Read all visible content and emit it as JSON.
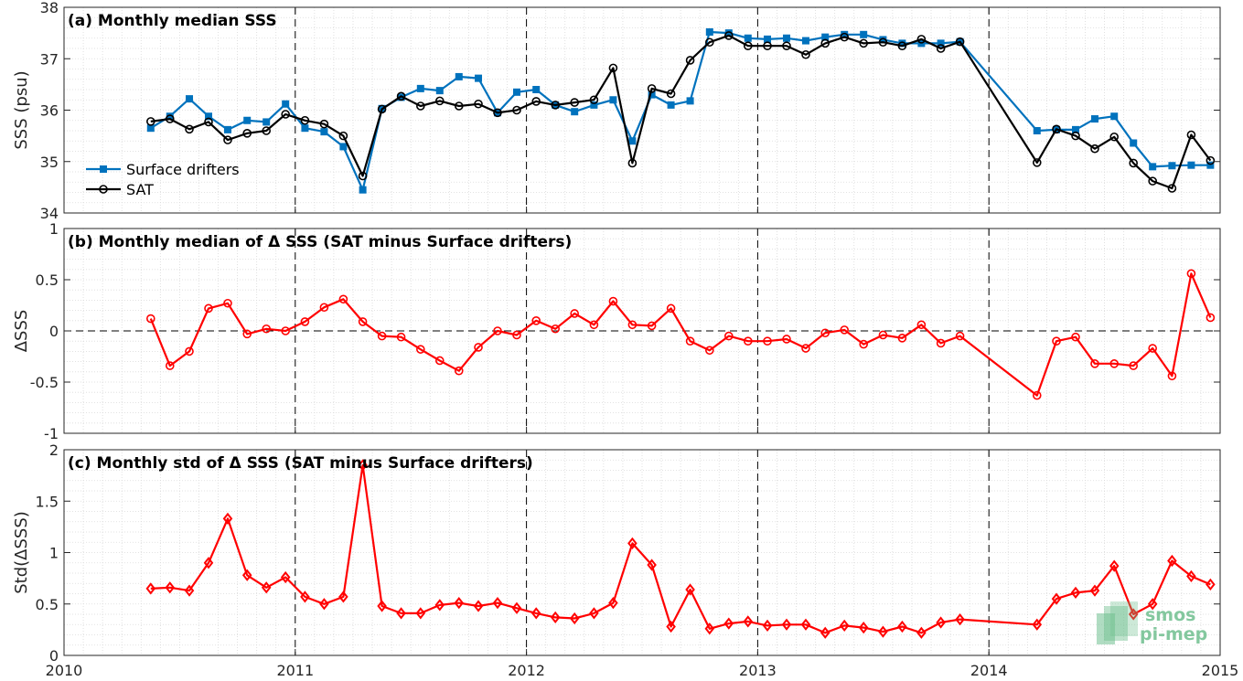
{
  "colors": {
    "drifters": "#0072BD",
    "sat": "#000000",
    "red": "#FF0000",
    "grid": "#d9d9d9",
    "logo_green": "#6fbf8f"
  },
  "logo": {
    "line1": "smos",
    "line2": "pi-mep"
  },
  "chart_data": [
    {
      "type": "line",
      "panel": "a",
      "title": "(a) Monthly median SSS",
      "ylabel": "SSS (psu)",
      "xlabel": "",
      "xlim": [
        2010,
        2015
      ],
      "ylim": [
        34,
        38
      ],
      "xticks": [
        "2010",
        "2011",
        "2012",
        "2013",
        "2014",
        "2015"
      ],
      "yticks": [
        "34",
        "35",
        "36",
        "37",
        "38"
      ],
      "legend": "bottom-left",
      "grid": true,
      "series": [
        {
          "name": "Surface drifters",
          "color": "#0072BD",
          "marker": "square",
          "x": [
            2010.375,
            2010.458,
            2010.542,
            2010.625,
            2010.708,
            2010.792,
            2010.875,
            2010.958,
            2011.042,
            2011.125,
            2011.208,
            2011.292,
            2011.375,
            2011.458,
            2011.542,
            2011.625,
            2011.708,
            2011.792,
            2011.875,
            2011.958,
            2012.042,
            2012.125,
            2012.208,
            2012.292,
            2012.375,
            2012.458,
            2012.542,
            2012.625,
            2012.708,
            2012.792,
            2012.875,
            2012.958,
            2013.042,
            2013.125,
            2013.208,
            2013.292,
            2013.375,
            2013.458,
            2013.542,
            2013.625,
            2013.708,
            2013.792,
            2013.875,
            2014.208,
            2014.292,
            2014.375,
            2014.458,
            2014.542,
            2014.625,
            2014.708,
            2014.792,
            2014.875,
            2014.958
          ],
          "values": [
            35.65,
            35.88,
            36.22,
            35.88,
            35.62,
            35.8,
            35.77,
            36.12,
            35.65,
            35.58,
            35.29,
            34.45,
            36.03,
            36.25,
            36.42,
            36.38,
            36.65,
            36.62,
            35.95,
            36.35,
            36.4,
            36.1,
            35.97,
            36.1,
            36.2,
            35.4,
            36.3,
            36.1,
            36.18,
            37.52,
            37.5,
            37.4,
            37.38,
            37.4,
            37.35,
            37.42,
            37.47,
            37.47,
            37.37,
            37.3,
            37.3,
            37.3,
            37.33,
            35.6,
            35.62,
            35.62,
            35.83,
            35.88,
            35.36,
            34.9,
            34.92,
            34.93,
            34.93
          ]
        },
        {
          "name": "SAT",
          "color": "#000000",
          "marker": "circle",
          "x": [
            2010.375,
            2010.458,
            2010.542,
            2010.625,
            2010.708,
            2010.792,
            2010.875,
            2010.958,
            2011.042,
            2011.125,
            2011.208,
            2011.292,
            2011.375,
            2011.458,
            2011.542,
            2011.625,
            2011.708,
            2011.792,
            2011.875,
            2011.958,
            2012.042,
            2012.125,
            2012.208,
            2012.292,
            2012.375,
            2012.458,
            2012.542,
            2012.625,
            2012.708,
            2012.792,
            2012.875,
            2012.958,
            2013.042,
            2013.125,
            2013.208,
            2013.292,
            2013.375,
            2013.458,
            2013.542,
            2013.625,
            2013.708,
            2013.792,
            2013.875,
            2014.208,
            2014.292,
            2014.375,
            2014.458,
            2014.542,
            2014.625,
            2014.708,
            2014.792,
            2014.875,
            2014.958
          ],
          "values": [
            35.78,
            35.83,
            35.63,
            35.77,
            35.42,
            35.55,
            35.6,
            35.92,
            35.8,
            35.73,
            35.5,
            34.72,
            36.02,
            36.27,
            36.08,
            36.18,
            36.08,
            36.12,
            35.95,
            36.0,
            36.17,
            36.1,
            36.15,
            36.2,
            36.82,
            34.97,
            36.42,
            36.32,
            36.97,
            37.32,
            37.45,
            37.25,
            37.25,
            37.25,
            37.08,
            37.3,
            37.42,
            37.3,
            37.32,
            37.25,
            37.38,
            37.2,
            37.33,
            34.98,
            35.63,
            35.5,
            35.25,
            35.48,
            34.97,
            34.62,
            34.48,
            35.52,
            35.02
          ]
        }
      ]
    },
    {
      "type": "line",
      "panel": "b",
      "title": "(b) Monthly median of Δ SSS (SAT minus Surface drifters)",
      "ylabel": "ΔSSS",
      "xlabel": "",
      "xlim": [
        2010,
        2015
      ],
      "ylim": [
        -1,
        1
      ],
      "xticks": [
        "2010",
        "2011",
        "2012",
        "2013",
        "2014",
        "2015"
      ],
      "yticks": [
        "-1",
        "-0.5",
        "0",
        "0.5",
        "1"
      ],
      "zero_line": true,
      "grid": true,
      "series": [
        {
          "name": "",
          "color": "#FF0000",
          "marker": "circle",
          "x": [
            2010.375,
            2010.458,
            2010.542,
            2010.625,
            2010.708,
            2010.792,
            2010.875,
            2010.958,
            2011.042,
            2011.125,
            2011.208,
            2011.292,
            2011.375,
            2011.458,
            2011.542,
            2011.625,
            2011.708,
            2011.792,
            2011.875,
            2011.958,
            2012.042,
            2012.125,
            2012.208,
            2012.292,
            2012.375,
            2012.458,
            2012.542,
            2012.625,
            2012.708,
            2012.792,
            2012.875,
            2012.958,
            2013.042,
            2013.125,
            2013.208,
            2013.292,
            2013.375,
            2013.458,
            2013.542,
            2013.625,
            2013.708,
            2013.792,
            2013.875,
            2014.208,
            2014.292,
            2014.375,
            2014.458,
            2014.542,
            2014.625,
            2014.708,
            2014.792,
            2014.875,
            2014.958
          ],
          "values": [
            0.12,
            -0.34,
            -0.2,
            0.22,
            0.27,
            -0.03,
            0.02,
            0.0,
            0.09,
            0.23,
            0.31,
            0.09,
            -0.05,
            -0.06,
            -0.18,
            -0.29,
            -0.39,
            -0.16,
            0.0,
            -0.04,
            0.1,
            0.02,
            0.17,
            0.06,
            0.29,
            0.06,
            0.05,
            0.22,
            -0.1,
            -0.19,
            -0.05,
            -0.1,
            -0.1,
            -0.08,
            -0.17,
            -0.02,
            0.01,
            -0.13,
            -0.04,
            -0.07,
            0.06,
            -0.12,
            -0.05,
            -0.63,
            -0.1,
            -0.06,
            -0.32,
            -0.32,
            -0.34,
            -0.17,
            -0.44,
            0.56,
            0.13
          ]
        }
      ]
    },
    {
      "type": "line",
      "panel": "c",
      "title": "(c) Monthly std of Δ SSS (SAT minus Surface drifters)",
      "ylabel": "Std(ΔSSS)",
      "xlabel": "",
      "xlim": [
        2010,
        2015
      ],
      "ylim": [
        0,
        2
      ],
      "xticks": [
        "2010",
        "2011",
        "2012",
        "2013",
        "2014",
        "2015"
      ],
      "yticks": [
        "0",
        "0.5",
        "1",
        "1.5",
        "2"
      ],
      "grid": true,
      "series": [
        {
          "name": "",
          "color": "#FF0000",
          "marker": "diamond",
          "x": [
            2010.375,
            2010.458,
            2010.542,
            2010.625,
            2010.708,
            2010.792,
            2010.875,
            2010.958,
            2011.042,
            2011.125,
            2011.208,
            2011.292,
            2011.375,
            2011.458,
            2011.542,
            2011.625,
            2011.708,
            2011.792,
            2011.875,
            2011.958,
            2012.042,
            2012.125,
            2012.208,
            2012.292,
            2012.375,
            2012.458,
            2012.542,
            2012.625,
            2012.708,
            2012.792,
            2012.875,
            2012.958,
            2013.042,
            2013.125,
            2013.208,
            2013.292,
            2013.375,
            2013.458,
            2013.542,
            2013.625,
            2013.708,
            2013.792,
            2013.875,
            2014.208,
            2014.292,
            2014.375,
            2014.458,
            2014.542,
            2014.625,
            2014.708,
            2014.792,
            2014.875,
            2014.958
          ],
          "values": [
            0.65,
            0.66,
            0.63,
            0.9,
            1.33,
            0.78,
            0.66,
            0.76,
            0.57,
            0.5,
            0.57,
            1.85,
            0.48,
            0.41,
            0.41,
            0.49,
            0.51,
            0.48,
            0.51,
            0.46,
            0.41,
            0.37,
            0.36,
            0.41,
            0.51,
            1.09,
            0.88,
            0.28,
            0.64,
            0.26,
            0.31,
            0.33,
            0.29,
            0.3,
            0.3,
            0.22,
            0.29,
            0.27,
            0.23,
            0.28,
            0.22,
            0.32,
            0.35,
            0.3,
            0.55,
            0.61,
            0.63,
            0.87,
            0.4,
            0.5,
            0.92,
            0.77,
            0.69
          ]
        }
      ]
    }
  ]
}
